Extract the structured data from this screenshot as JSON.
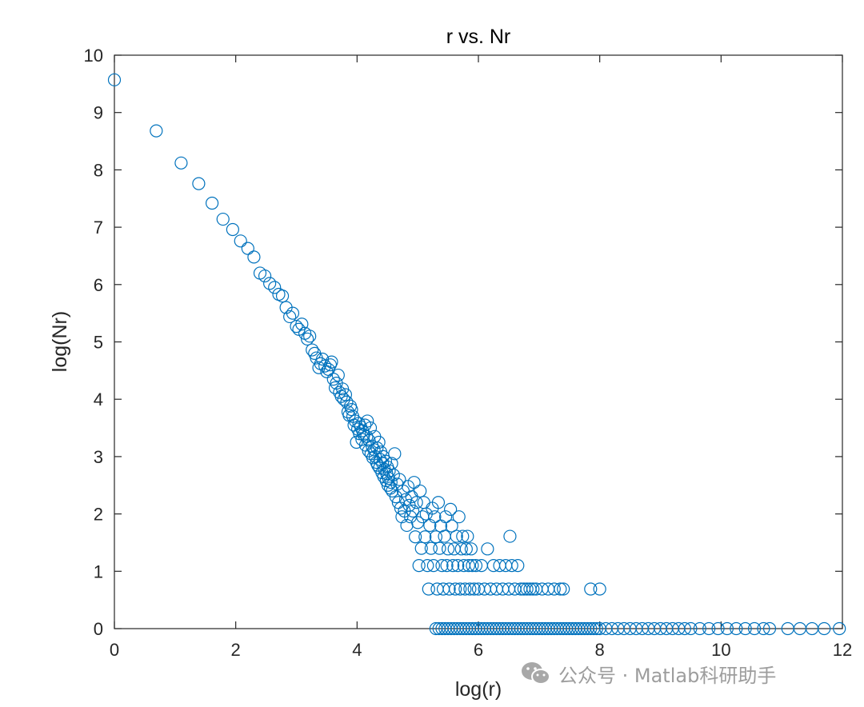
{
  "chart_data": {
    "type": "scatter",
    "title": "r vs. Nr",
    "xlabel": "log(r)",
    "ylabel": "log(Nr)",
    "xlim": [
      0,
      12
    ],
    "ylim": [
      0,
      10
    ],
    "xticks": [
      0,
      2,
      4,
      6,
      8,
      10,
      12
    ],
    "yticks": [
      0,
      1,
      2,
      3,
      4,
      5,
      6,
      7,
      8,
      9,
      10
    ],
    "marker": "open-circle",
    "marker_color": "#0072BD",
    "box": true,
    "grid": false,
    "series": [
      {
        "points": [
          [
            0,
            9.57
          ],
          [
            0.69,
            8.68
          ],
          [
            1.1,
            8.12
          ],
          [
            1.39,
            7.76
          ],
          [
            1.61,
            7.42
          ],
          [
            1.79,
            7.14
          ],
          [
            1.95,
            6.96
          ],
          [
            2.08,
            6.76
          ],
          [
            2.2,
            6.63
          ],
          [
            2.3,
            6.48
          ],
          [
            2.4,
            6.2
          ],
          [
            2.48,
            6.15
          ],
          [
            2.56,
            6.02
          ],
          [
            2.64,
            5.95
          ],
          [
            2.71,
            5.83
          ],
          [
            2.77,
            5.8
          ],
          [
            2.83,
            5.6
          ],
          [
            2.89,
            5.44
          ],
          [
            2.94,
            5.5
          ],
          [
            3.0,
            5.27
          ],
          [
            3.04,
            5.22
          ],
          [
            3.09,
            5.31
          ],
          [
            3.14,
            5.15
          ],
          [
            3.18,
            5.05
          ],
          [
            3.22,
            5.1
          ],
          [
            3.26,
            4.86
          ],
          [
            3.3,
            4.8
          ],
          [
            3.33,
            4.72
          ],
          [
            3.37,
            4.55
          ],
          [
            3.4,
            4.62
          ],
          [
            3.43,
            4.7
          ],
          [
            3.47,
            4.58
          ],
          [
            3.5,
            4.48
          ],
          [
            3.53,
            4.52
          ],
          [
            3.56,
            4.6
          ],
          [
            3.58,
            4.65
          ],
          [
            3.61,
            4.35
          ],
          [
            3.64,
            4.2
          ],
          [
            3.66,
            4.28
          ],
          [
            3.69,
            4.42
          ],
          [
            3.71,
            4.12
          ],
          [
            3.74,
            4.05
          ],
          [
            3.76,
            4.18
          ],
          [
            3.78,
            4.0
          ],
          [
            3.81,
            4.08
          ],
          [
            3.83,
            3.95
          ],
          [
            3.85,
            3.78
          ],
          [
            3.87,
            3.72
          ],
          [
            3.89,
            3.88
          ],
          [
            3.91,
            3.82
          ],
          [
            3.93,
            3.7
          ],
          [
            3.95,
            3.55
          ],
          [
            3.97,
            3.62
          ],
          [
            3.99,
            3.25
          ],
          [
            4.01,
            3.48
          ],
          [
            4.03,
            3.58
          ],
          [
            4.04,
            3.4
          ],
          [
            4.06,
            3.52
          ],
          [
            4.08,
            3.3
          ],
          [
            4.09,
            3.45
          ],
          [
            4.11,
            3.38
          ],
          [
            4.13,
            3.55
          ],
          [
            4.14,
            3.2
          ],
          [
            4.16,
            3.35
          ],
          [
            4.17,
            3.62
          ],
          [
            4.19,
            3.1
          ],
          [
            4.2,
            3.28
          ],
          [
            4.22,
            3.5
          ],
          [
            4.23,
            3.05
          ],
          [
            4.25,
            3.18
          ],
          [
            4.26,
            2.98
          ],
          [
            4.28,
            3.12
          ],
          [
            4.29,
            3.35
          ],
          [
            4.3,
            3.0
          ],
          [
            4.32,
            2.9
          ],
          [
            4.33,
            3.15
          ],
          [
            4.34,
            2.85
          ],
          [
            4.36,
            3.25
          ],
          [
            4.37,
            2.8
          ],
          [
            4.38,
            2.95
          ],
          [
            4.39,
            3.08
          ],
          [
            4.41,
            2.72
          ],
          [
            4.42,
            2.88
          ],
          [
            4.43,
            3.0
          ],
          [
            4.44,
            2.65
          ],
          [
            4.45,
            2.78
          ],
          [
            4.47,
            2.92
          ],
          [
            4.48,
            2.58
          ],
          [
            4.49,
            2.7
          ],
          [
            4.5,
            2.82
          ],
          [
            4.51,
            2.5
          ],
          [
            4.52,
            2.62
          ],
          [
            4.53,
            2.75
          ],
          [
            4.55,
            2.45
          ],
          [
            4.56,
            2.55
          ],
          [
            4.57,
            2.88
          ],
          [
            4.58,
            2.4
          ],
          [
            4.6,
            2.68
          ],
          [
            4.62,
            3.05
          ],
          [
            4.64,
            2.3
          ],
          [
            4.66,
            2.52
          ],
          [
            4.68,
            2.2
          ],
          [
            4.7,
            2.6
          ],
          [
            4.72,
            2.1
          ],
          [
            4.74,
            1.95
          ],
          [
            4.76,
            2.4
          ],
          [
            4.78,
            2.05
          ],
          [
            4.8,
            2.25
          ],
          [
            4.82,
            1.8
          ],
          [
            4.84,
            2.48
          ],
          [
            4.86,
            2.15
          ],
          [
            4.88,
            1.95
          ],
          [
            4.9,
            2.3
          ],
          [
            4.92,
            2.05
          ],
          [
            4.94,
            2.55
          ],
          [
            4.96,
            1.6
          ],
          [
            4.98,
            2.2
          ],
          [
            5.0,
            1.85
          ],
          [
            5.02,
            1.1
          ],
          [
            5.04,
            2.4
          ],
          [
            5.06,
            1.4
          ],
          [
            5.08,
            1.95
          ],
          [
            5.1,
            2.2
          ],
          [
            5.12,
            1.6
          ],
          [
            5.14,
            2.0
          ],
          [
            5.16,
            1.1
          ],
          [
            5.18,
            0.69
          ],
          [
            5.2,
            1.8
          ],
          [
            5.22,
            1.4
          ],
          [
            5.24,
            2.1
          ],
          [
            5.26,
            1.1
          ],
          [
            5.28,
            1.95
          ],
          [
            5.3,
            1.6
          ],
          [
            5.32,
            0.69
          ],
          [
            5.34,
            2.2
          ],
          [
            5.36,
            1.4
          ],
          [
            5.38,
            1.79
          ],
          [
            5.4,
            1.1
          ],
          [
            5.42,
            0.69
          ],
          [
            5.44,
            1.61
          ],
          [
            5.46,
            1.95
          ],
          [
            5.48,
            1.1
          ],
          [
            5.5,
            1.39
          ],
          [
            5.52,
            0.69
          ],
          [
            5.54,
            2.08
          ],
          [
            5.56,
            1.79
          ],
          [
            5.58,
            1.1
          ],
          [
            5.6,
            1.39
          ],
          [
            5.62,
            0.69
          ],
          [
            5.64,
            1.61
          ],
          [
            5.66,
            1.1
          ],
          [
            5.68,
            1.95
          ],
          [
            5.7,
            0.69
          ],
          [
            5.72,
            1.39
          ],
          [
            5.74,
            1.61
          ],
          [
            5.76,
            1.1
          ],
          [
            5.78,
            0.69
          ],
          [
            5.8,
            1.39
          ],
          [
            5.82,
            1.61
          ],
          [
            5.84,
            1.1
          ],
          [
            5.86,
            0.69
          ],
          [
            5.88,
            1.39
          ],
          [
            5.9,
            1.1
          ],
          [
            5.93,
            0.69
          ],
          [
            5.96,
            1.1
          ],
          [
            6.0,
            0.69
          ],
          [
            6.05,
            1.1
          ],
          [
            6.1,
            0.69
          ],
          [
            6.15,
            1.39
          ],
          [
            6.2,
            0.69
          ],
          [
            6.25,
            1.1
          ],
          [
            6.3,
            0.69
          ],
          [
            6.35,
            1.1
          ],
          [
            6.4,
            0.69
          ],
          [
            6.45,
            1.1
          ],
          [
            6.5,
            0.69
          ],
          [
            6.52,
            1.61
          ],
          [
            6.55,
            1.1
          ],
          [
            6.6,
            0.69
          ],
          [
            6.65,
            1.1
          ],
          [
            6.7,
            0.69
          ],
          [
            6.75,
            0.69
          ],
          [
            6.8,
            0.69
          ],
          [
            6.85,
            0.69
          ],
          [
            6.9,
            0.69
          ],
          [
            6.95,
            0.69
          ],
          [
            7.05,
            0.69
          ],
          [
            7.15,
            0.69
          ],
          [
            7.25,
            0.69
          ],
          [
            7.35,
            0.69
          ],
          [
            7.4,
            0.69
          ],
          [
            7.85,
            0.69
          ],
          [
            8.0,
            0.69
          ],
          [
            5.3,
            0
          ],
          [
            5.35,
            0
          ],
          [
            5.4,
            0
          ],
          [
            5.45,
            0
          ],
          [
            5.5,
            0
          ],
          [
            5.55,
            0
          ],
          [
            5.6,
            0
          ],
          [
            5.65,
            0
          ],
          [
            5.7,
            0
          ],
          [
            5.75,
            0
          ],
          [
            5.8,
            0
          ],
          [
            5.85,
            0
          ],
          [
            5.9,
            0
          ],
          [
            5.95,
            0
          ],
          [
            6.0,
            0
          ],
          [
            6.05,
            0
          ],
          [
            6.1,
            0
          ],
          [
            6.15,
            0
          ],
          [
            6.2,
            0
          ],
          [
            6.25,
            0
          ],
          [
            6.3,
            0
          ],
          [
            6.35,
            0
          ],
          [
            6.4,
            0
          ],
          [
            6.45,
            0
          ],
          [
            6.5,
            0
          ],
          [
            6.55,
            0
          ],
          [
            6.6,
            0
          ],
          [
            6.65,
            0
          ],
          [
            6.7,
            0
          ],
          [
            6.75,
            0
          ],
          [
            6.8,
            0
          ],
          [
            6.85,
            0
          ],
          [
            6.9,
            0
          ],
          [
            6.95,
            0
          ],
          [
            7.0,
            0
          ],
          [
            7.05,
            0
          ],
          [
            7.1,
            0
          ],
          [
            7.15,
            0
          ],
          [
            7.2,
            0
          ],
          [
            7.25,
            0
          ],
          [
            7.3,
            0
          ],
          [
            7.35,
            0
          ],
          [
            7.4,
            0
          ],
          [
            7.45,
            0
          ],
          [
            7.5,
            0
          ],
          [
            7.55,
            0
          ],
          [
            7.6,
            0
          ],
          [
            7.65,
            0
          ],
          [
            7.7,
            0
          ],
          [
            7.75,
            0
          ],
          [
            7.8,
            0
          ],
          [
            7.85,
            0
          ],
          [
            7.9,
            0
          ],
          [
            7.95,
            0
          ],
          [
            8.0,
            0
          ],
          [
            8.1,
            0
          ],
          [
            8.2,
            0
          ],
          [
            8.3,
            0
          ],
          [
            8.4,
            0
          ],
          [
            8.5,
            0
          ],
          [
            8.6,
            0
          ],
          [
            8.7,
            0
          ],
          [
            8.8,
            0
          ],
          [
            8.9,
            0
          ],
          [
            9.0,
            0
          ],
          [
            9.1,
            0
          ],
          [
            9.2,
            0
          ],
          [
            9.3,
            0
          ],
          [
            9.4,
            0
          ],
          [
            9.5,
            0
          ],
          [
            9.65,
            0
          ],
          [
            9.8,
            0
          ],
          [
            9.95,
            0
          ],
          [
            10.1,
            0
          ],
          [
            10.25,
            0
          ],
          [
            10.4,
            0
          ],
          [
            10.55,
            0
          ],
          [
            10.7,
            0
          ],
          [
            10.8,
            0
          ],
          [
            11.1,
            0
          ],
          [
            11.3,
            0
          ],
          [
            11.5,
            0
          ],
          [
            11.7,
            0
          ],
          [
            11.95,
            0
          ]
        ]
      }
    ]
  },
  "watermark": {
    "text": "公众号 · Matlab科研助手",
    "icon": "wechat-icon"
  }
}
